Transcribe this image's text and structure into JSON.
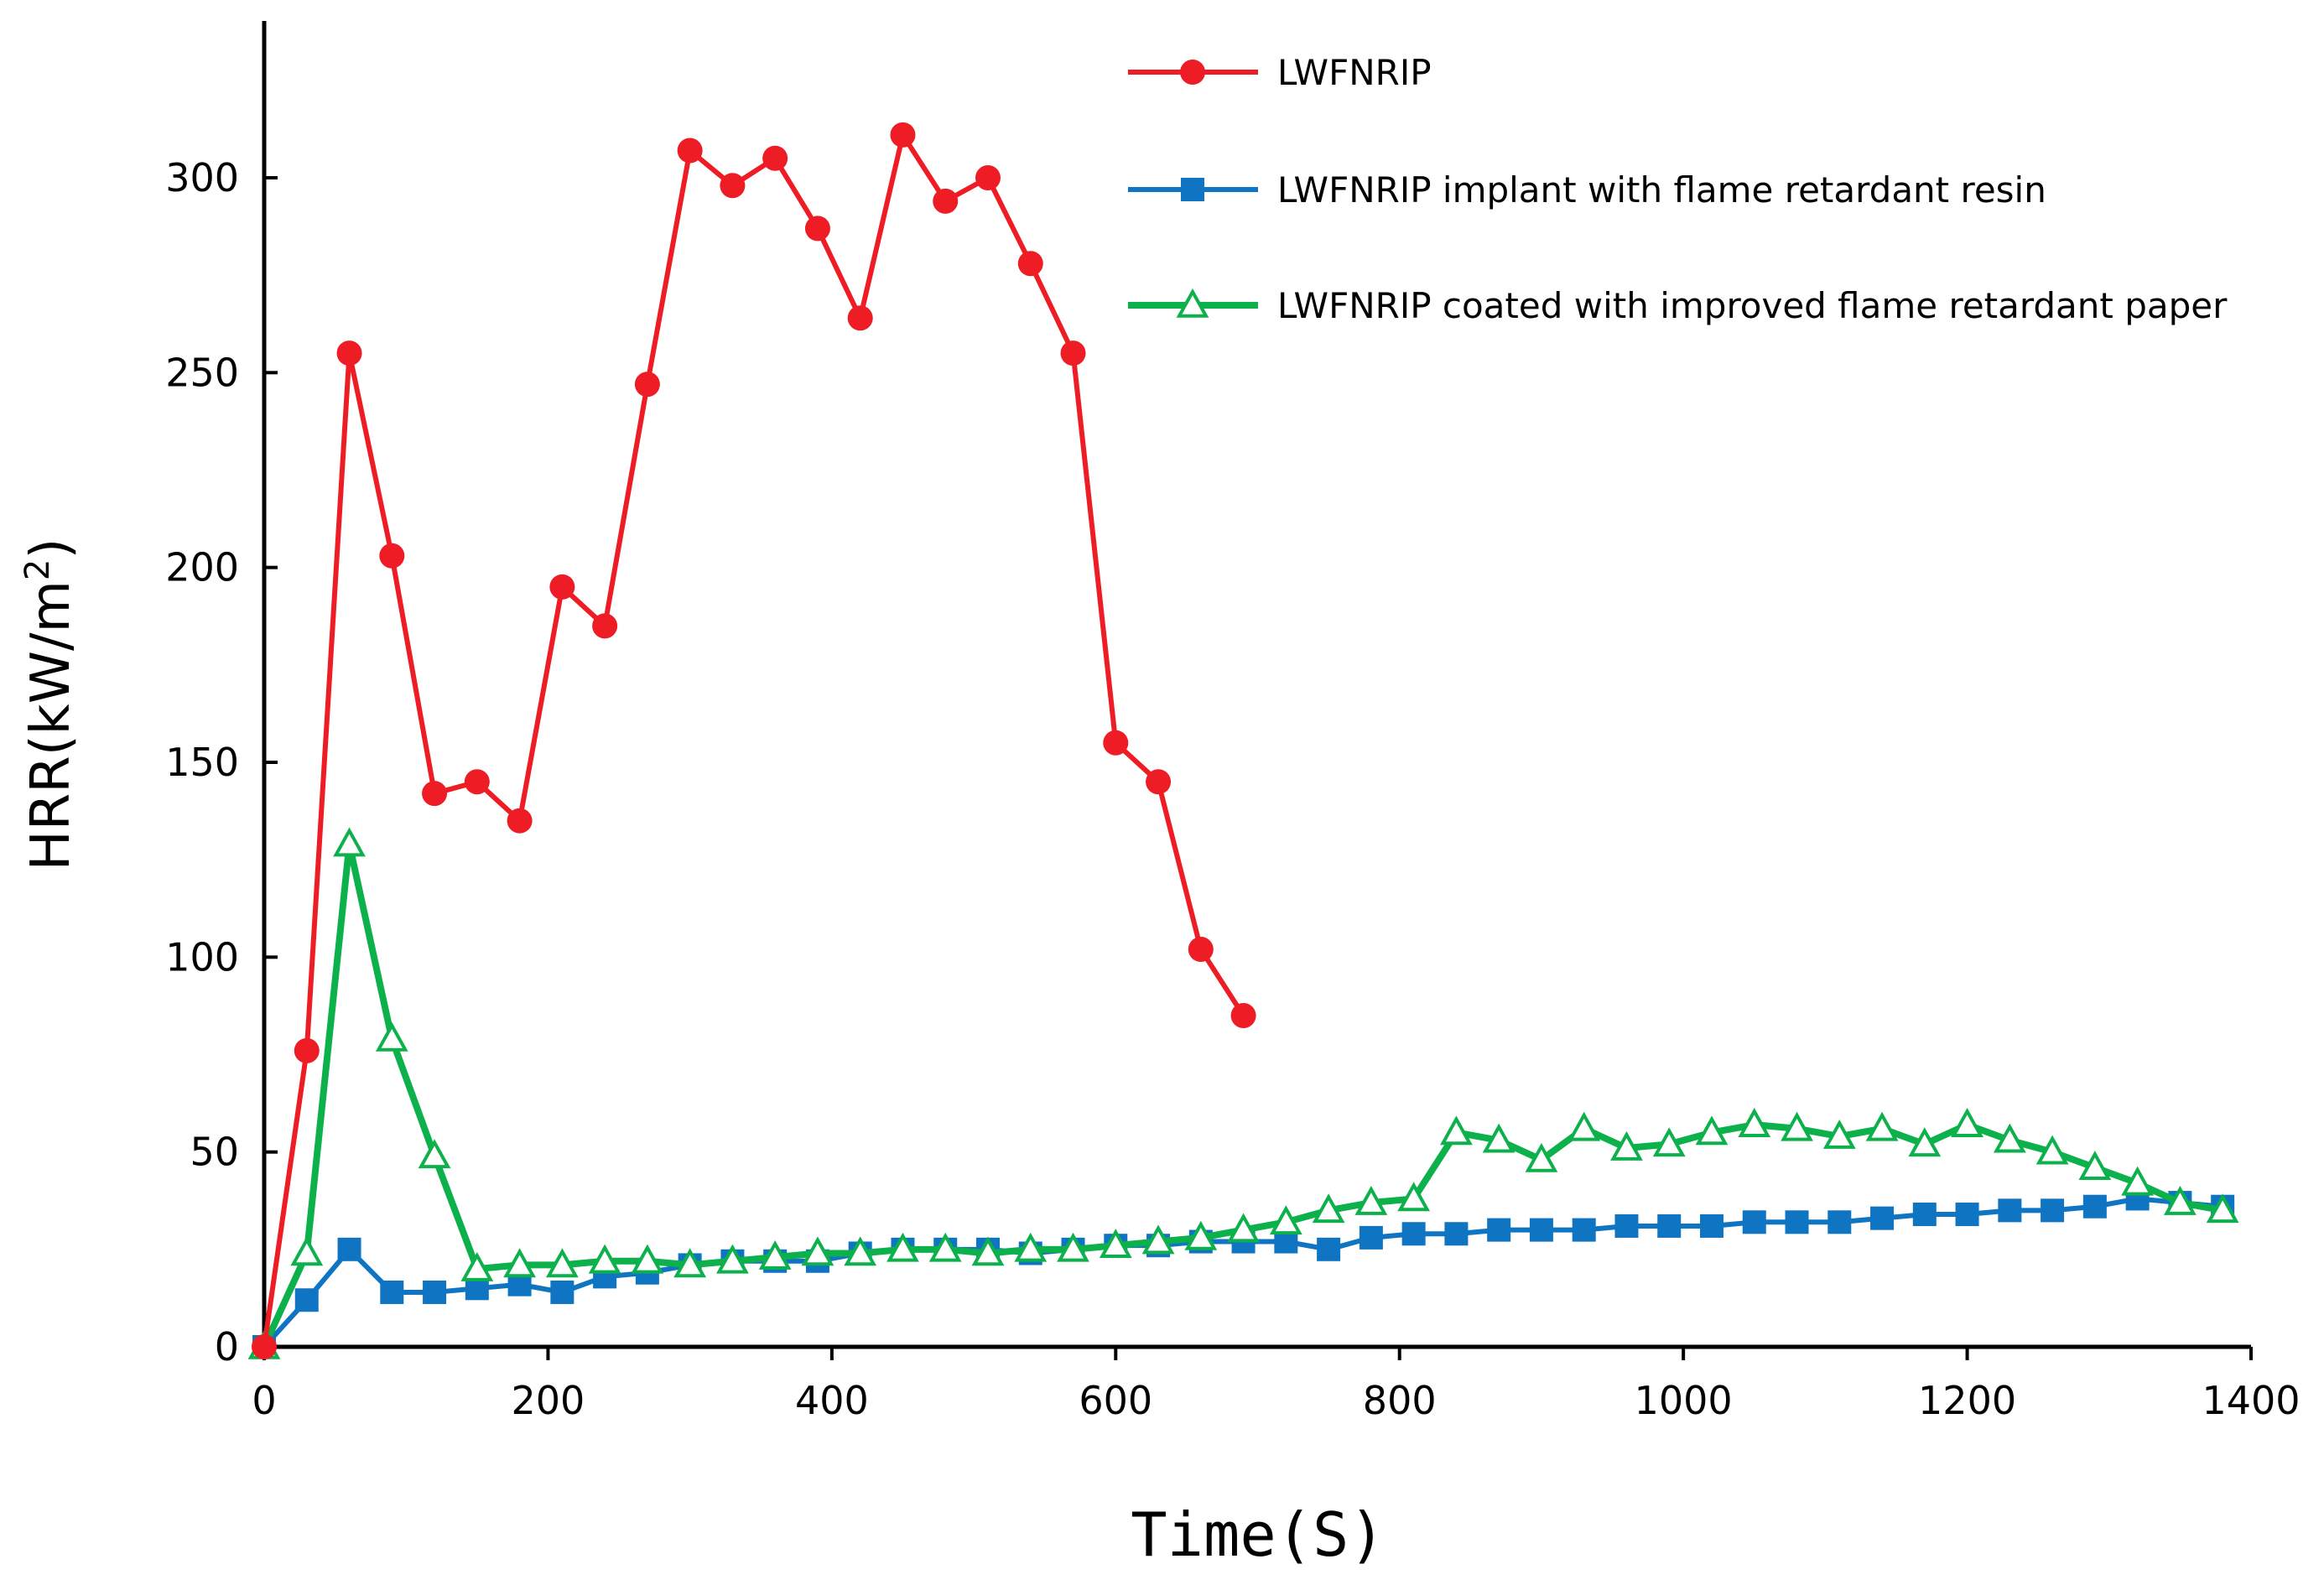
{
  "chart_data": {
    "type": "line",
    "title": "",
    "xlabel": "Time(S)",
    "ylabel": "HRR(kW/m",
    "ylabel_sup": "2",
    "ylabel_tail": ")",
    "xlim": [
      0,
      1400
    ],
    "ylim": [
      0,
      340
    ],
    "x_ticks": [
      "0",
      "200",
      "400",
      "600",
      "800",
      "1000",
      "1200",
      "1400"
    ],
    "y_ticks": [
      "0",
      "50",
      "100",
      "150",
      "200",
      "250",
      "300"
    ],
    "grid": false,
    "legend_position": "top-right",
    "series": [
      {
        "name": "LWFNRIP",
        "color": "#ee1c24",
        "marker": "circle",
        "x": [
          0,
          30,
          60,
          90,
          120,
          150,
          180,
          210,
          240,
          270,
          300,
          330,
          360,
          390,
          420,
          450,
          480,
          510,
          540,
          570,
          600,
          630,
          660,
          690
        ],
        "values": [
          0,
          76,
          255,
          203,
          142,
          145,
          135,
          195,
          185,
          247,
          307,
          298,
          305,
          287,
          264,
          311,
          294,
          300,
          278,
          255,
          155,
          145,
          102,
          85
        ]
      },
      {
        "name": "LWFNRIP implant with flame retardant resin",
        "color": "#0f75c3",
        "marker": "square",
        "x": [
          0,
          30,
          60,
          90,
          120,
          150,
          180,
          210,
          240,
          270,
          300,
          330,
          360,
          390,
          420,
          450,
          480,
          510,
          540,
          570,
          600,
          630,
          660,
          690,
          720,
          750,
          780,
          810,
          840,
          870,
          900,
          930,
          960,
          990,
          1020,
          1050,
          1080,
          1110,
          1140,
          1170,
          1200,
          1230,
          1260,
          1290,
          1320,
          1350,
          1380
        ],
        "values": [
          0,
          12,
          25,
          14,
          14,
          15,
          16,
          14,
          18,
          19,
          21,
          22,
          22,
          22,
          24,
          25,
          25,
          25,
          24,
          25,
          26,
          26,
          27,
          27,
          27,
          25,
          28,
          29,
          29,
          30,
          30,
          30,
          31,
          31,
          31,
          32,
          32,
          32,
          33,
          34,
          34,
          35,
          35,
          36,
          38,
          37,
          36
        ]
      },
      {
        "name": "LWFNRIP coated with improved flame retardant paper",
        "color": "#0db14b",
        "marker": "triangle",
        "x": [
          0,
          30,
          60,
          90,
          120,
          150,
          180,
          210,
          240,
          270,
          300,
          330,
          360,
          390,
          420,
          450,
          480,
          510,
          540,
          570,
          600,
          630,
          660,
          690,
          720,
          750,
          780,
          810,
          840,
          870,
          900,
          930,
          960,
          990,
          1020,
          1050,
          1080,
          1110,
          1140,
          1170,
          1200,
          1230,
          1260,
          1290,
          1320,
          1350,
          1380
        ],
        "values": [
          0,
          24,
          129,
          79,
          49,
          20,
          21,
          21,
          22,
          22,
          21,
          22,
          23,
          24,
          24,
          25,
          25,
          24,
          25,
          25,
          26,
          27,
          28,
          30,
          32,
          35,
          37,
          38,
          55,
          53,
          48,
          56,
          51,
          52,
          55,
          57,
          56,
          54,
          56,
          52,
          57,
          53,
          50,
          46,
          42,
          37,
          35
        ]
      }
    ]
  }
}
